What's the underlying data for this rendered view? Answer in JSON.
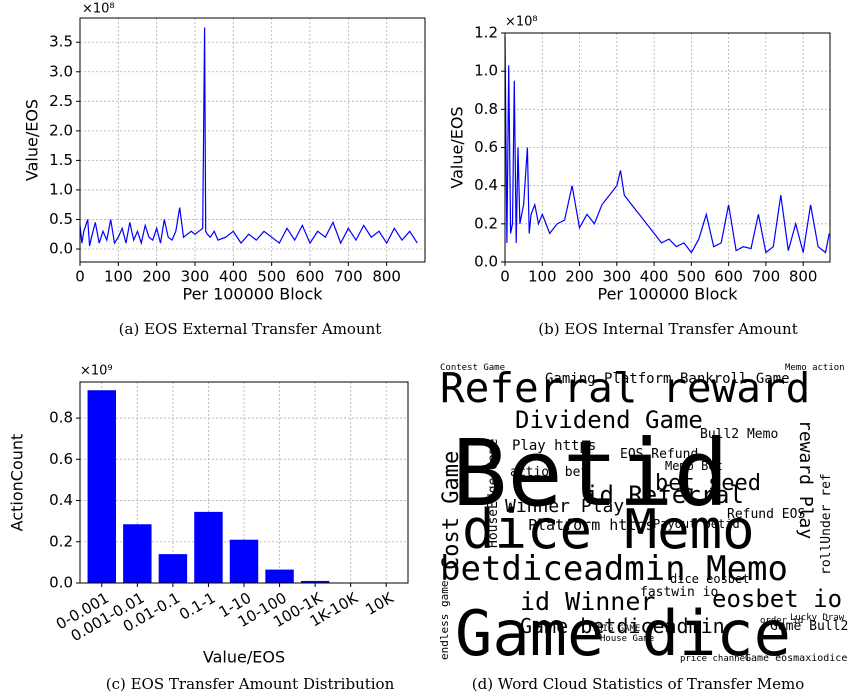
{
  "chart_data": [
    {
      "type": "line",
      "caption": "(a) EOS External Transfer Amount",
      "xlabel": "Per 100000 Block",
      "ylabel": "Value/EOS",
      "y_offset_label": "×10⁸",
      "xlim": [
        0,
        900
      ],
      "ylim": [
        -0.22,
        3.91
      ],
      "xticks": [
        0,
        100,
        200,
        300,
        400,
        500,
        600,
        700,
        800
      ],
      "yticks": [
        {
          "value": 0,
          "label": "0.0"
        },
        0.5,
        {
          "value": 1,
          "label": "1.0"
        },
        1.5,
        {
          "value": 2,
          "label": "2.0"
        },
        2.5,
        {
          "value": 3,
          "label": "3.0"
        },
        3.5
      ],
      "grid": true,
      "series": [
        {
          "name": "External",
          "color": "#0000ff",
          "x": [
            0,
            5,
            10,
            20,
            25,
            30,
            40,
            50,
            60,
            70,
            80,
            90,
            100,
            110,
            120,
            130,
            140,
            150,
            160,
            170,
            180,
            190,
            200,
            210,
            220,
            230,
            240,
            250,
            260,
            270,
            280,
            290,
            300,
            310,
            320,
            325,
            328,
            332,
            340,
            350,
            360,
            380,
            400,
            420,
            440,
            460,
            480,
            500,
            520,
            540,
            560,
            580,
            600,
            620,
            640,
            660,
            680,
            700,
            720,
            740,
            760,
            780,
            800,
            820,
            840,
            860,
            880
          ],
          "values": [
            0.4,
            0.1,
            0.3,
            0.5,
            0.05,
            0.2,
            0.45,
            0.1,
            0.3,
            0.15,
            0.5,
            0.1,
            0.2,
            0.35,
            0.1,
            0.45,
            0.15,
            0.3,
            0.1,
            0.4,
            0.2,
            0.15,
            0.35,
            0.1,
            0.5,
            0.2,
            0.15,
            0.3,
            0.7,
            0.2,
            0.25,
            0.3,
            0.25,
            0.3,
            0.35,
            3.75,
            0.3,
            0.25,
            0.2,
            0.3,
            0.15,
            0.2,
            0.3,
            0.1,
            0.25,
            0.15,
            0.3,
            0.2,
            0.1,
            0.35,
            0.15,
            0.4,
            0.1,
            0.3,
            0.2,
            0.45,
            0.1,
            0.35,
            0.15,
            0.4,
            0.2,
            0.3,
            0.1,
            0.35,
            0.15,
            0.3,
            0.1
          ]
        }
      ]
    },
    {
      "type": "line",
      "caption": "(b) EOS Internal Transfer Amount",
      "xlabel": "Per 100000 Block",
      "ylabel": "Value/EOS",
      "y_offset_label": "×10⁸",
      "xlim": [
        0,
        872
      ],
      "ylim": [
        0,
        1.2
      ],
      "xticks": [
        0,
        100,
        200,
        300,
        400,
        500,
        600,
        700,
        800
      ],
      "yticks": [
        {
          "value": 0,
          "label": "0.0"
        },
        0.2,
        0.4,
        0.6,
        0.8,
        {
          "value": 1,
          "label": "1.0"
        },
        1.2
      ],
      "grid": true,
      "series": [
        {
          "name": "Internal",
          "color": "#0000ff",
          "x": [
            0,
            5,
            10,
            15,
            20,
            25,
            30,
            35,
            40,
            50,
            60,
            65,
            70,
            80,
            90,
            100,
            120,
            140,
            160,
            180,
            200,
            220,
            240,
            260,
            280,
            300,
            310,
            320,
            340,
            360,
            380,
            400,
            420,
            440,
            460,
            480,
            500,
            520,
            540,
            560,
            580,
            600,
            620,
            640,
            660,
            680,
            700,
            720,
            740,
            760,
            780,
            800,
            820,
            840,
            860,
            870
          ],
          "values": [
            1.18,
            0.1,
            1.03,
            0.15,
            0.2,
            0.95,
            0.1,
            0.6,
            0.2,
            0.3,
            0.6,
            0.15,
            0.25,
            0.3,
            0.2,
            0.25,
            0.15,
            0.2,
            0.22,
            0.4,
            0.18,
            0.25,
            0.2,
            0.3,
            0.35,
            0.4,
            0.48,
            0.35,
            0.3,
            0.25,
            0.2,
            0.15,
            0.1,
            0.12,
            0.08,
            0.1,
            0.05,
            0.12,
            0.25,
            0.08,
            0.1,
            0.3,
            0.06,
            0.08,
            0.07,
            0.25,
            0.05,
            0.08,
            0.35,
            0.06,
            0.2,
            0.05,
            0.3,
            0.08,
            0.05,
            0.15
          ]
        }
      ]
    },
    {
      "type": "bar",
      "caption": "(c) EOS Transfer Amount Distribution",
      "xlabel": "Value/EOS",
      "ylabel": "ActionCount",
      "y_offset_label": "×10⁹",
      "categories": [
        "0-0.001",
        "0.001-0.01",
        "0.01-0.1",
        "0.1-1",
        "1-10",
        "10-100",
        "100-1K",
        "1K-10K",
        "10K"
      ],
      "values": [
        0.935,
        0.285,
        0.14,
        0.345,
        0.21,
        0.065,
        0.01,
        0.002,
        0.002
      ],
      "color": "#0000ff",
      "ylim": [
        0,
        0.975
      ],
      "yticks": [
        {
          "value": 0,
          "label": "0.0"
        },
        0.2,
        0.4,
        0.6,
        0.8
      ],
      "grid": true
    }
  ],
  "word_cloud": {
    "caption": "(d) Word Cloud Statistics of Transfer Memo",
    "words": [
      "Referral reward",
      "Betid",
      "dice Memo",
      "betdiceadmin Memo",
      "Game dice",
      "Dividend Game",
      "Gaming Platform",
      "Bankroll Game",
      "Play https",
      "action bet",
      "EOS Refund",
      "bet seed",
      "Bull2 Memo",
      "Winner Play",
      "id Referral",
      "Platform https",
      "Refund EOS",
      "id Winner",
      "eosbet io",
      "Game betdiceadmin",
      "Game Bull2",
      "Cost Game",
      "reward Play",
      "Payout betid",
      "fastwin io",
      "dice eosbet",
      "Memo Bet",
      "Contest Game",
      "endless game",
      "HouseEdge Game",
      "House Game",
      "BIG GAME",
      "Game eosmaxiodice",
      "rollUnder ref",
      "price channel",
      "Lucky Draw",
      "Memo action",
      "order id"
    ]
  }
}
